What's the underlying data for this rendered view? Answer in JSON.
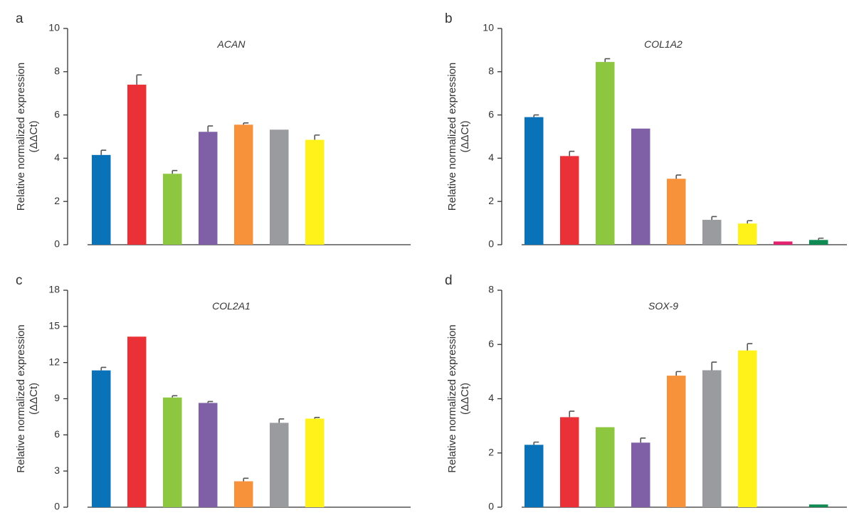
{
  "palette": [
    "#0a72b8",
    "#ea3138",
    "#8dc63f",
    "#7f5fa5",
    "#f7923a",
    "#999b9e",
    "#fff21b",
    "#e3236f",
    "#0e8a52"
  ],
  "chart_data": [
    {
      "type": "bar",
      "panel_letter": "a",
      "title": "ACAN",
      "ylabel": "Relative normalized expression",
      "ylabel2": "(ΔΔCt)",
      "ylim": [
        0,
        10
      ],
      "yticks": [
        0,
        2,
        4,
        6,
        8,
        10
      ],
      "values": [
        4.15,
        7.4,
        3.28,
        5.22,
        5.55,
        5.32,
        4.85,
        null,
        null
      ],
      "errors": [
        0.22,
        0.45,
        0.15,
        0.27,
        0.08,
        0.0,
        0.22,
        null,
        null
      ]
    },
    {
      "type": "bar",
      "panel_letter": "b",
      "title": "COL1A2",
      "ylabel": "Relative normalized expression",
      "ylabel2": "(ΔΔCt)",
      "ylim": [
        0,
        10
      ],
      "yticks": [
        0,
        2,
        4,
        6,
        8,
        10
      ],
      "values": [
        5.9,
        4.1,
        8.45,
        5.37,
        3.05,
        1.15,
        0.98,
        0.15,
        0.22
      ],
      "errors": [
        0.1,
        0.22,
        0.15,
        0.0,
        0.17,
        0.15,
        0.13,
        0.0,
        0.08
      ]
    },
    {
      "type": "bar",
      "panel_letter": "c",
      "title": "COL2A1",
      "ylabel": "Relative normalized expression",
      "ylabel2": "(ΔΔCt)",
      "ylim": [
        0,
        18
      ],
      "yticks": [
        0,
        3,
        6,
        9,
        12,
        15,
        18
      ],
      "values": [
        11.35,
        14.15,
        9.1,
        8.65,
        2.15,
        7.0,
        7.35,
        null,
        null
      ],
      "errors": [
        0.25,
        0.0,
        0.15,
        0.12,
        0.25,
        0.32,
        0.1,
        null,
        null
      ]
    },
    {
      "type": "bar",
      "panel_letter": "d",
      "title": "SOX-9",
      "ylabel": "Relative normalized expression",
      "ylabel2": "(ΔΔCt)",
      "ylim": [
        0,
        8
      ],
      "yticks": [
        0,
        2,
        4,
        6,
        8
      ],
      "values": [
        2.3,
        3.32,
        2.95,
        2.38,
        4.85,
        5.05,
        5.78,
        null,
        0.1
      ],
      "errors": [
        0.1,
        0.22,
        0.0,
        0.17,
        0.15,
        0.3,
        0.25,
        null,
        0.0
      ]
    }
  ]
}
